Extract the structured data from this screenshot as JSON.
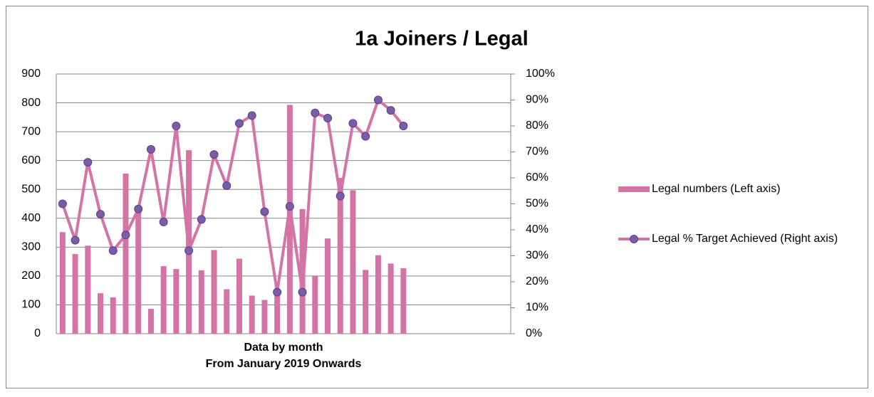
{
  "chart_data": {
    "type": "bar_line",
    "title": "1a Joiners / Legal",
    "x_label": "Data by month",
    "x_sublabel": "From January 2019 Onwards",
    "categories": [
      null,
      null,
      null,
      null,
      null,
      null,
      null,
      null,
      null,
      null,
      null,
      null,
      null,
      null,
      null,
      null,
      null,
      null,
      null,
      null,
      null,
      null,
      null,
      null,
      null,
      null,
      null,
      null,
      null,
      null,
      null,
      null,
      null,
      null,
      null,
      null
    ],
    "series": [
      {
        "name": "Legal numbers (Left axis)",
        "type": "bar",
        "color": "#d474a6",
        "axis": "y",
        "values": [
          352,
          276,
          305,
          140,
          126,
          555,
          440,
          86,
          234,
          224,
          636,
          220,
          290,
          154,
          260,
          132,
          117,
          140,
          793,
          432,
          200,
          330,
          540,
          497,
          221,
          272,
          243,
          227,
          null,
          null,
          null,
          null,
          null,
          null,
          null,
          null
        ]
      },
      {
        "name": "Legal % Target Achieved (Right axis)",
        "type": "line",
        "color": "#d474a6",
        "marker_color": "#7a5ca8",
        "axis": "y2",
        "values": [
          50,
          36,
          66,
          46,
          32,
          38,
          48,
          71,
          43,
          80,
          32,
          44,
          69,
          57,
          81,
          84,
          47,
          16,
          49,
          16,
          85,
          83,
          53,
          81,
          76,
          90,
          86,
          80,
          null,
          null,
          null,
          null,
          null,
          null,
          null,
          null
        ]
      }
    ],
    "ylim": [
      0,
      900
    ],
    "yticks": [
      0,
      100,
      200,
      300,
      400,
      500,
      600,
      700,
      800,
      900
    ],
    "y2lim": [
      0,
      100
    ],
    "y2ticks": [
      {
        "value": 0,
        "label": "0%"
      },
      {
        "value": 10,
        "label": "10%"
      },
      {
        "value": 20,
        "label": "20%"
      },
      {
        "value": 30,
        "label": "30%"
      },
      {
        "value": 40,
        "label": "40%"
      },
      {
        "value": 50,
        "label": "50%"
      },
      {
        "value": 60,
        "label": "60%"
      },
      {
        "value": 70,
        "label": "70%"
      },
      {
        "value": 80,
        "label": "80%"
      },
      {
        "value": 90,
        "label": "90%"
      },
      {
        "value": 100,
        "label": "100%"
      }
    ],
    "grid": true,
    "legend": "right"
  }
}
